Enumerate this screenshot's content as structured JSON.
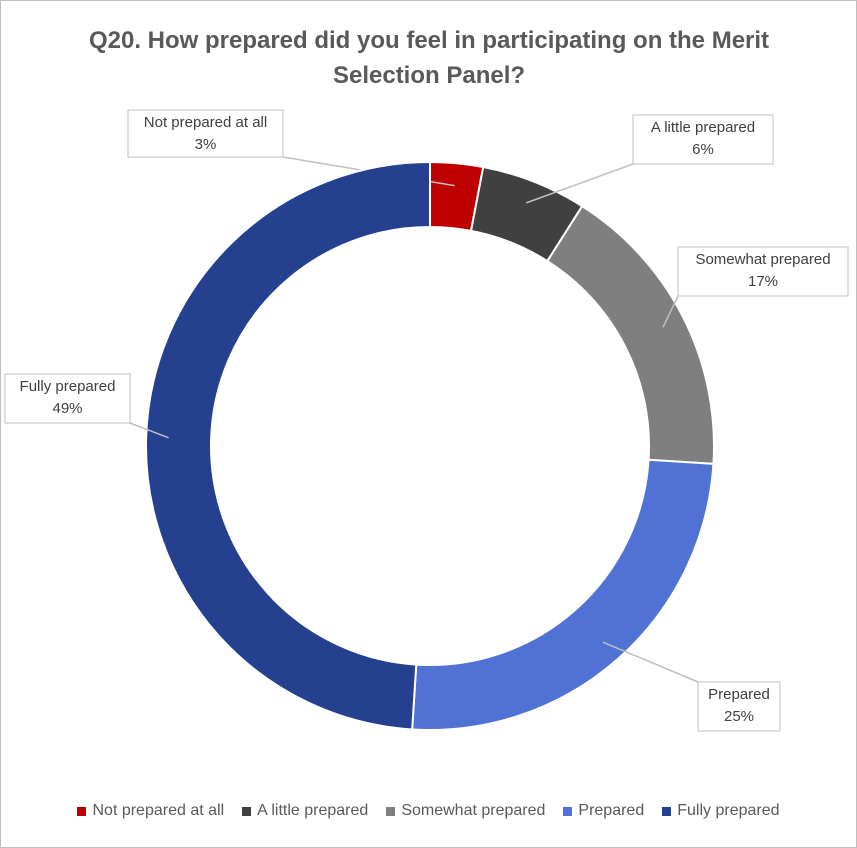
{
  "chart_data": {
    "type": "donut",
    "title": "Q20. How prepared did you feel in participating on the Merit Selection Panel?",
    "categories": [
      "Not prepared at all",
      "A little prepared",
      "Somewhat prepared",
      "Prepared",
      "Fully prepared"
    ],
    "values": [
      3,
      6,
      17,
      25,
      49
    ],
    "value_labels": [
      "3%",
      "6%",
      "17%",
      "25%",
      "49%"
    ],
    "colors": [
      "#c00000",
      "#404040",
      "#7f7f7f",
      "#4f72d4",
      "#24408f"
    ],
    "legend": "bottom"
  }
}
